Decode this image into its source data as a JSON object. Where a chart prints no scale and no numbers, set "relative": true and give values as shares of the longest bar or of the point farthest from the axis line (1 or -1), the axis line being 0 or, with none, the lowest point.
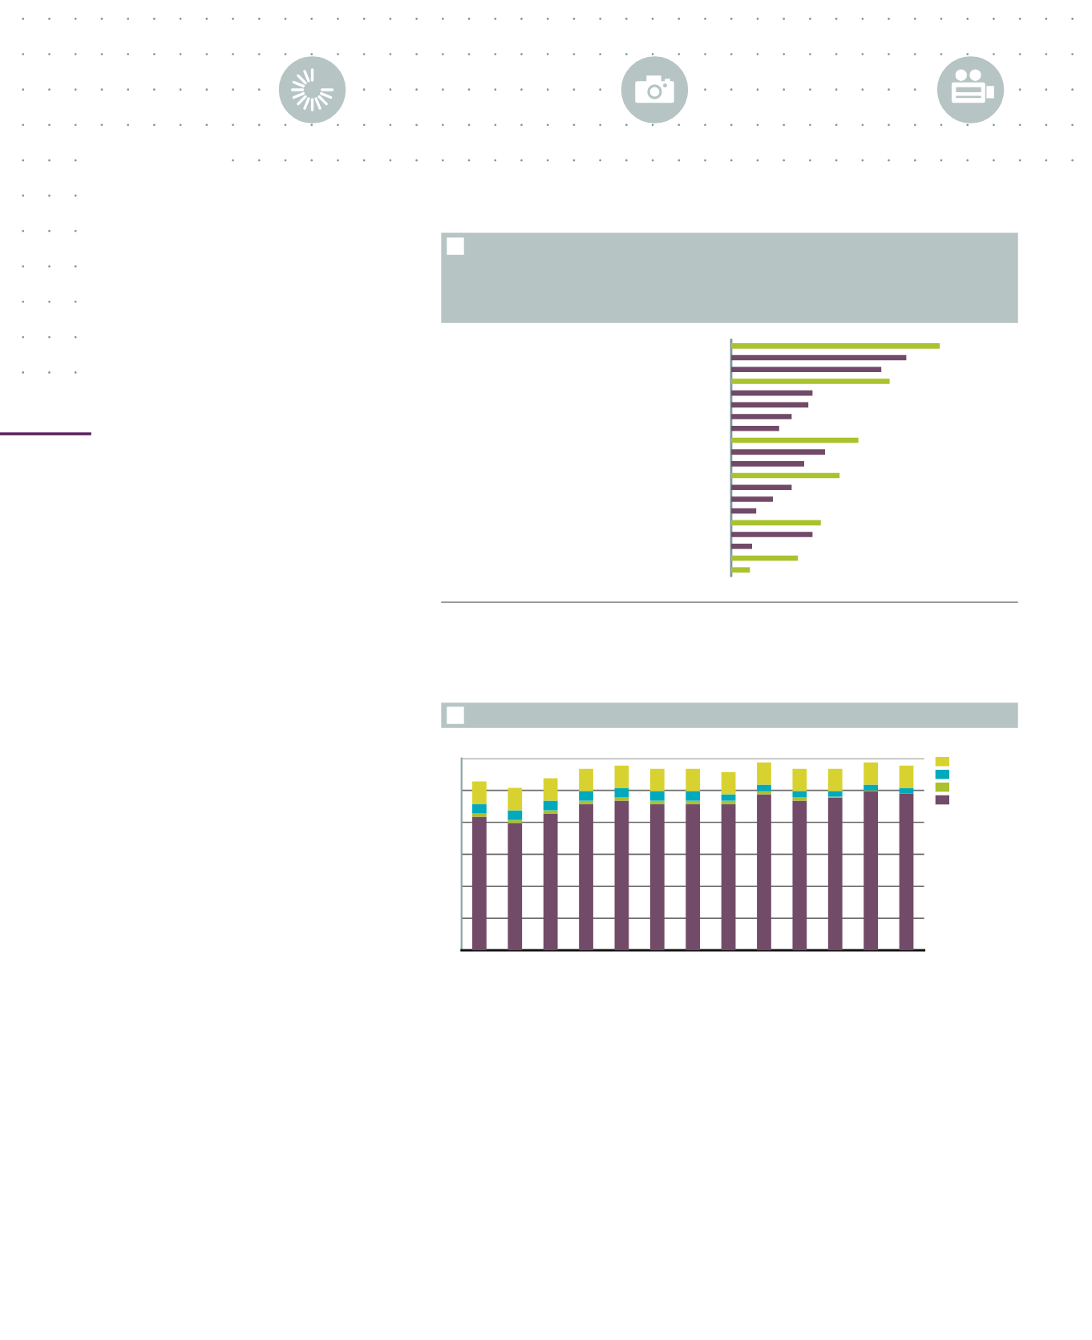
{
  "chart_data": [
    {
      "type": "bar",
      "orientation": "horizontal",
      "relative": true,
      "categories": [
        null,
        null,
        null,
        null,
        null,
        null,
        null,
        null,
        null,
        null,
        null,
        null,
        null,
        null,
        null,
        null,
        null,
        null,
        null,
        null
      ],
      "values": [
        1.0,
        0.84,
        0.72,
        0.76,
        0.39,
        0.37,
        0.29,
        0.23,
        0.61,
        0.45,
        0.35,
        0.52,
        0.29,
        0.2,
        0.12,
        0.43,
        0.39,
        0.1,
        0.32,
        0.09
      ],
      "colors": [
        "#a9c22e",
        "#724a68",
        "#724a68",
        "#a9c22e",
        "#724a68",
        "#724a68",
        "#724a68",
        "#724a68",
        "#a9c22e",
        "#724a68",
        "#724a68",
        "#a9c22e",
        "#724a68",
        "#724a68",
        "#724a68",
        "#a9c22e",
        "#724a68",
        "#724a68",
        "#a9c22e",
        "#a9c22e"
      ]
    },
    {
      "type": "bar",
      "stacked": true,
      "relative": true,
      "grid": "y",
      "categories": [
        null,
        null,
        null,
        null,
        null,
        null,
        null,
        null,
        null,
        null,
        null,
        null,
        null
      ],
      "series": [
        {
          "color": "#724b68",
          "values": [
            0.711,
            0.677,
            0.728,
            0.779,
            0.796,
            0.779,
            0.779,
            0.779,
            0.83,
            0.796,
            0.813,
            0.847,
            0.833
          ]
        },
        {
          "color": "#a9c22e",
          "values": [
            0.017,
            0.017,
            0.017,
            0.017,
            0.017,
            0.017,
            0.017,
            0.017,
            0.017,
            0.017,
            0.004,
            0.004,
            null
          ]
        },
        {
          "color": "#00a9bc",
          "values": [
            0.051,
            0.051,
            0.051,
            0.051,
            0.051,
            0.051,
            0.051,
            0.034,
            0.034,
            0.034,
            0.03,
            0.03,
            0.031
          ]
        },
        {
          "color": "#d8d231",
          "values": [
            0.119,
            0.119,
            0.119,
            0.119,
            0.119,
            0.119,
            0.119,
            0.119,
            0.119,
            0.119,
            0.119,
            0.119,
            0.119
          ]
        }
      ]
    }
  ]
}
